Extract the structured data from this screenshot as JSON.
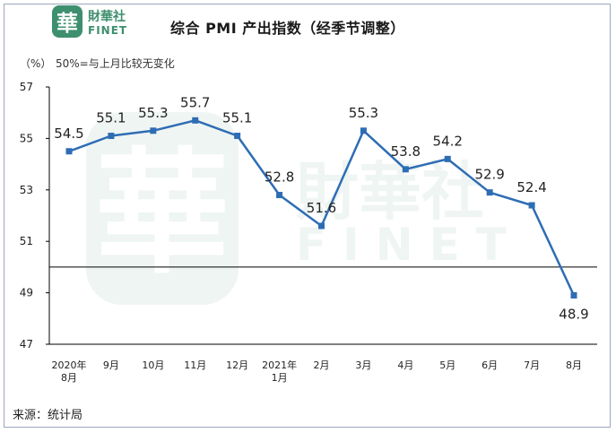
{
  "header": {
    "title": "综合 PMI 产出指数（经季节调整）",
    "logo_text_cn": "財華社",
    "logo_text_en": "FINET",
    "logo_glyph": "華"
  },
  "unit_label": "（%）",
  "note": "50%=与上月比较无变化",
  "source": "来源：统计局",
  "watermark": {
    "cn": "財華社",
    "en": "FINET",
    "glyph": "華"
  },
  "colors": {
    "series": "#2e6db4",
    "axis": "#000000",
    "frame": "#9aa7bd"
  },
  "chart_data": {
    "type": "line",
    "title": "综合 PMI 产出指数（经季节调整）",
    "ylabel": "（%）",
    "xlabel": "",
    "ylim": [
      47,
      57
    ],
    "yticks": [
      47,
      49,
      51,
      53,
      55,
      57
    ],
    "reference_line": 50,
    "grid": false,
    "categories": [
      [
        "2020年",
        "8月"
      ],
      [
        "9月"
      ],
      [
        "10月"
      ],
      [
        "11月"
      ],
      [
        "12月"
      ],
      [
        "2021年",
        "1月"
      ],
      [
        "2月"
      ],
      [
        "3月"
      ],
      [
        "4月"
      ],
      [
        "5月"
      ],
      [
        "6月"
      ],
      [
        "7月"
      ],
      [
        "8月"
      ]
    ],
    "values": [
      54.5,
      55.1,
      55.3,
      55.7,
      55.1,
      52.8,
      51.6,
      55.3,
      53.8,
      54.2,
      52.9,
      52.4,
      48.9
    ],
    "data_labels": [
      "54.5",
      "55.1",
      "55.3",
      "55.7",
      "55.1",
      "52.8",
      "51.6",
      "55.3",
      "53.8",
      "54.2",
      "52.9",
      "52.4",
      "48.9"
    ]
  }
}
